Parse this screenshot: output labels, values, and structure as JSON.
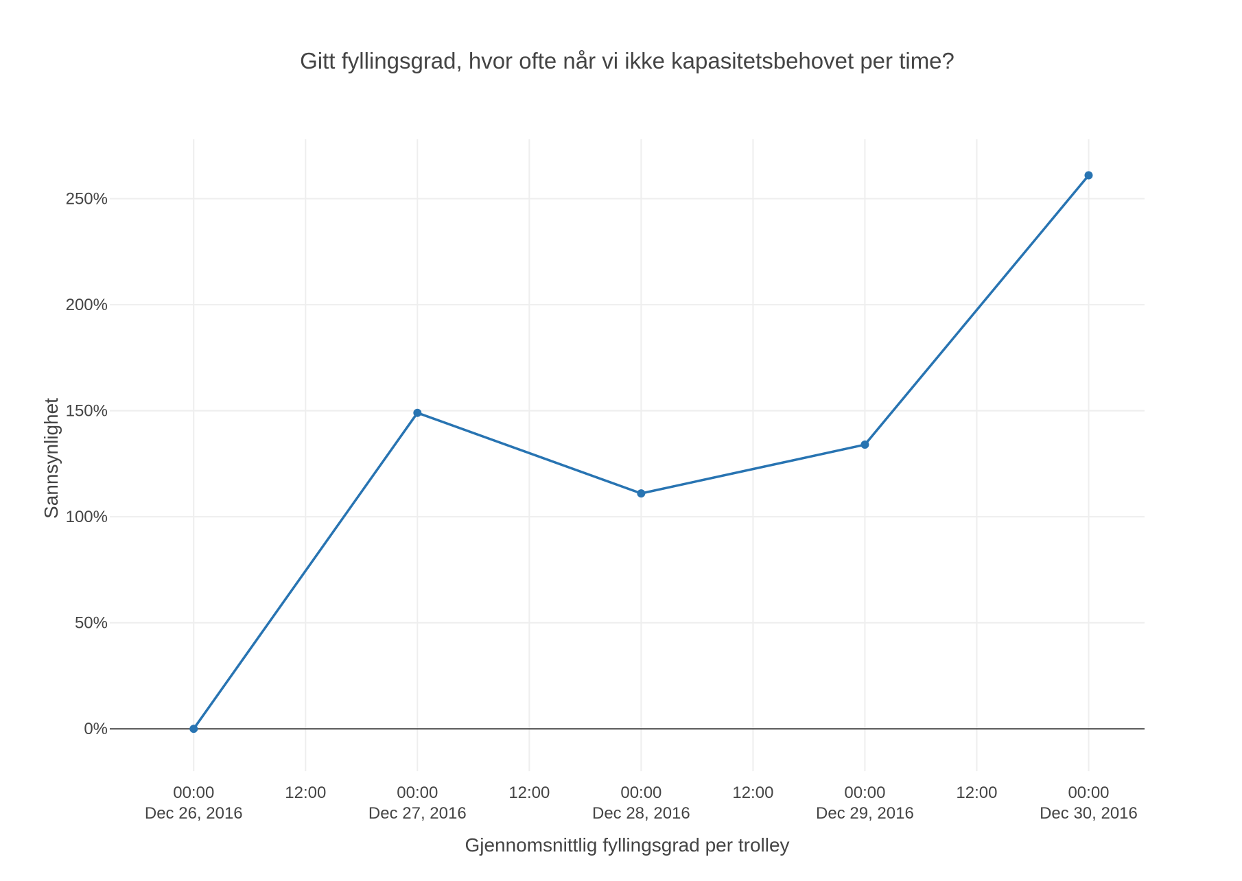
{
  "chart_data": {
    "type": "line",
    "title": "Gitt fyllingsgrad, hvor ofte når vi ikke kapasitetsbehovet per time?",
    "xlabel": "Gjennomsnittlig fyllingsgrad per trolley",
    "ylabel": "Sannsynlighet",
    "x": [
      "2016-12-26T00:00",
      "2016-12-27T00:00",
      "2016-12-28T00:00",
      "2016-12-29T00:00",
      "2016-12-30T00:00"
    ],
    "series": [
      {
        "values": [
          0,
          149,
          111,
          134,
          261
        ],
        "color": "#2874b2"
      }
    ],
    "y_unit": "%",
    "ylim": [
      -20,
      278
    ],
    "xlim": [
      "2016-12-25T15:00",
      "2016-12-30T06:00"
    ],
    "y_ticks": [
      {
        "value": 0,
        "label": "0%"
      },
      {
        "value": 50,
        "label": "50%"
      },
      {
        "value": 100,
        "label": "100%"
      },
      {
        "value": 150,
        "label": "150%"
      },
      {
        "value": 200,
        "label": "200%"
      },
      {
        "value": 250,
        "label": "250%"
      }
    ],
    "x_ticks": [
      {
        "value": "2016-12-26T00:00",
        "label": "00:00",
        "sublabel": "Dec 26, 2016"
      },
      {
        "value": "2016-12-26T12:00",
        "label": "12:00",
        "sublabel": ""
      },
      {
        "value": "2016-12-27T00:00",
        "label": "00:00",
        "sublabel": "Dec 27, 2016"
      },
      {
        "value": "2016-12-27T12:00",
        "label": "12:00",
        "sublabel": ""
      },
      {
        "value": "2016-12-28T00:00",
        "label": "00:00",
        "sublabel": "Dec 28, 2016"
      },
      {
        "value": "2016-12-28T12:00",
        "label": "12:00",
        "sublabel": ""
      },
      {
        "value": "2016-12-29T00:00",
        "label": "00:00",
        "sublabel": "Dec 29, 2016"
      },
      {
        "value": "2016-12-29T12:00",
        "label": "12:00",
        "sublabel": ""
      },
      {
        "value": "2016-12-30T00:00",
        "label": "00:00",
        "sublabel": "Dec 30, 2016"
      }
    ],
    "grid": true,
    "legend": "none"
  }
}
